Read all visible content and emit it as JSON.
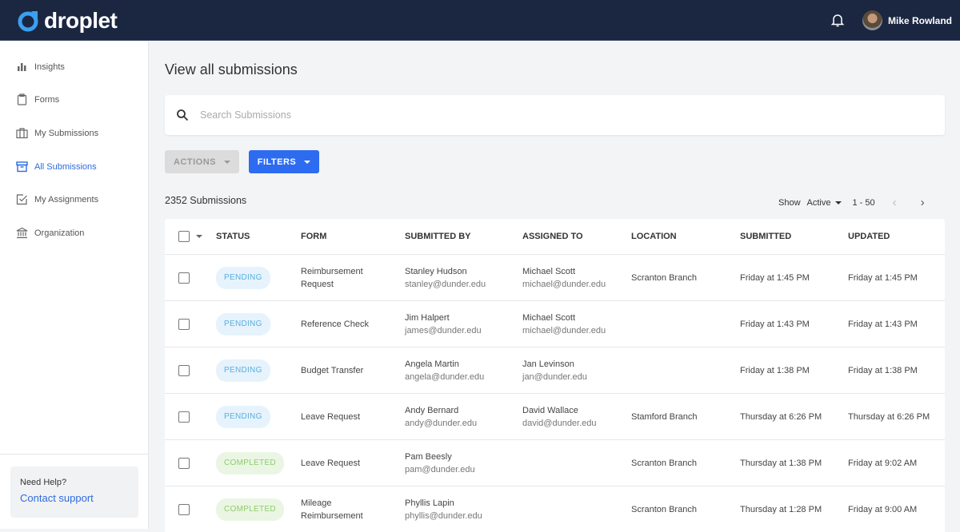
{
  "app": {
    "name": "droplet",
    "user": "Mike Rowland"
  },
  "sidebar": {
    "items": [
      {
        "label": "Insights"
      },
      {
        "label": "Forms"
      },
      {
        "label": "My Submissions"
      },
      {
        "label": "All Submissions"
      },
      {
        "label": "My Assignments"
      },
      {
        "label": "Organization"
      }
    ],
    "help_title": "Need Help?",
    "help_link": "Contact support"
  },
  "main": {
    "title": "View all submissions",
    "search_placeholder": "Search Submissions",
    "actions_label": "ACTIONS",
    "filters_label": "FILTERS",
    "count": "2352 Submissions",
    "show_label": "Show",
    "show_value": "Active",
    "range": "1 - 50"
  },
  "table": {
    "headers": [
      "STATUS",
      "FORM",
      "SUBMITTED BY",
      "ASSIGNED TO",
      "LOCATION",
      "SUBMITTED",
      "UPDATED"
    ],
    "rows": [
      {
        "status": "PENDING",
        "form": "Reimbursement Request",
        "by": "Stanley Hudson",
        "by_email": "stanley@dunder.edu",
        "to": "Michael Scott",
        "to_email": "michael@dunder.edu",
        "location": "Scranton Branch",
        "submitted": "Friday at 1:45 PM",
        "updated": "Friday at 1:45 PM"
      },
      {
        "status": "PENDING",
        "form": "Reference Check",
        "by": "Jim Halpert",
        "by_email": "james@dunder.edu",
        "to": "Michael Scott",
        "to_email": "michael@dunder.edu",
        "location": "",
        "submitted": "Friday at 1:43 PM",
        "updated": "Friday at 1:43 PM"
      },
      {
        "status": "PENDING",
        "form": "Budget Transfer",
        "by": "Angela Martin",
        "by_email": "angela@dunder.edu",
        "to": "Jan Levinson",
        "to_email": "jan@dunder.edu",
        "location": "",
        "submitted": "Friday at 1:38 PM",
        "updated": "Friday at 1:38 PM"
      },
      {
        "status": "PENDING",
        "form": "Leave Request",
        "by": "Andy Bernard",
        "by_email": "andy@dunder.edu",
        "to": "David Wallace",
        "to_email": "david@dunder.edu",
        "location": "Stamford Branch",
        "submitted": "Thursday at 6:26 PM",
        "updated": "Thursday at 6:26 PM"
      },
      {
        "status": "COMPLETED",
        "form": "Leave Request",
        "by": "Pam Beesly",
        "by_email": "pam@dunder.edu",
        "to": "",
        "to_email": "",
        "location": "Scranton Branch",
        "submitted": "Thursday at 1:38 PM",
        "updated": "Friday at 9:02 AM"
      },
      {
        "status": "COMPLETED",
        "form": "Mileage Reimbursement",
        "by": "Phyllis Lapin",
        "by_email": "phyllis@dunder.edu",
        "to": "",
        "to_email": "",
        "location": "Scranton Branch",
        "submitted": "Thursday at 1:28 PM",
        "updated": "Friday at 9:00 AM"
      }
    ]
  },
  "colors": {
    "header": "#1b2641",
    "accent": "#2d6cf0",
    "pending": "#5aaee0",
    "completed": "#8fcb6e"
  }
}
